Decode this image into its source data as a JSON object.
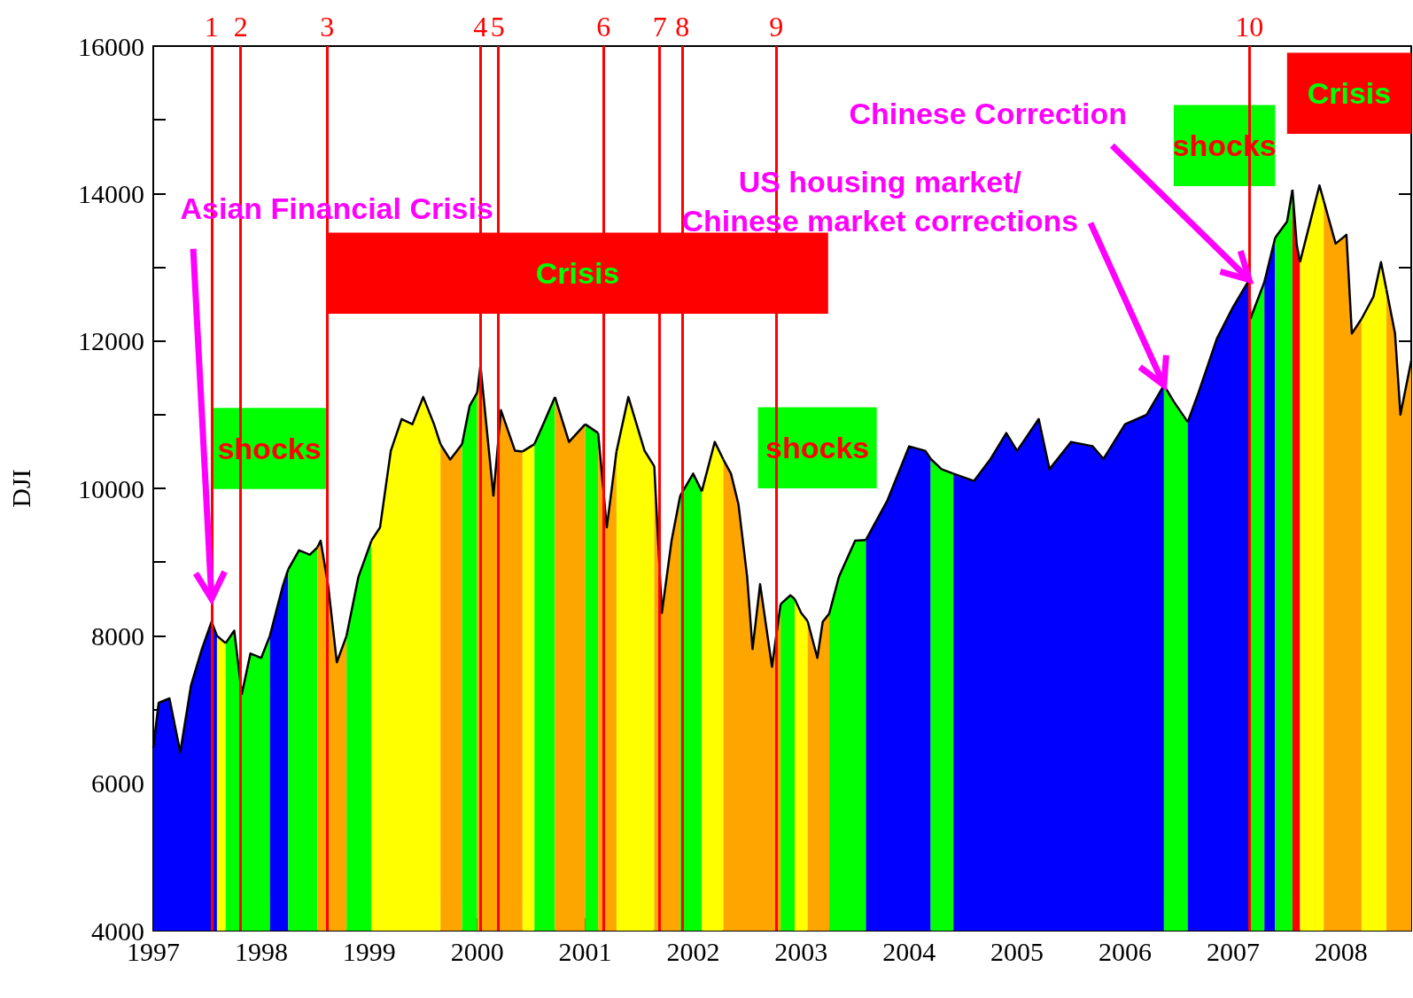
{
  "chart_data": {
    "type": "area",
    "ylabel": "DJI",
    "xlim": [
      1997,
      2008.65
    ],
    "xticks": [
      1997,
      1998,
      1999,
      2000,
      2001,
      2002,
      2003,
      2004,
      2005,
      2006,
      2007,
      2008
    ],
    "ylim": [
      4000,
      16000
    ],
    "yticks": [
      4000,
      {
        "value": 5000,
        "label": null
      },
      6000,
      {
        "value": 7000,
        "label": null
      },
      8000,
      {
        "value": 9000,
        "label": null
      },
      10000,
      {
        "value": 11000,
        "label": null
      },
      12000,
      {
        "value": 13000,
        "label": null
      },
      14000,
      {
        "value": 15000,
        "label": null
      },
      16000
    ],
    "series": [
      {
        "color": "#0000ff",
        "x": [
          1997.0,
          1997.05,
          1997.15,
          1997.25,
          1997.35,
          1997.45,
          1997.54,
          1997.59
        ],
        "values": [
          6480,
          7090,
          7150,
          6420,
          7330,
          7820,
          8190,
          8000
        ]
      },
      {
        "color": "#ffff00",
        "x": [
          1997.59,
          1997.67
        ],
        "values": [
          8000,
          7900
        ]
      },
      {
        "color": "#00ff00",
        "x": [
          1997.67,
          1997.75,
          1997.82,
          1997.9,
          1998.0,
          1998.08
        ],
        "values": [
          7900,
          8070,
          7210,
          7760,
          7700,
          8000
        ]
      },
      {
        "color": "#0000ff",
        "x": [
          1998.08,
          1998.2,
          1998.25
        ],
        "values": [
          8000,
          8680,
          8900
        ]
      },
      {
        "color": "#00ff00",
        "x": [
          1998.25,
          1998.35,
          1998.45,
          1998.52
        ],
        "values": [
          8900,
          9160,
          9100,
          9200
        ]
      },
      {
        "color": "#ffa500",
        "x": [
          1998.52,
          1998.55,
          1998.62,
          1998.7,
          1998.79
        ],
        "values": [
          9200,
          9290,
          8680,
          7640,
          8000
        ]
      },
      {
        "color": "#00ff00",
        "x": [
          1998.79,
          1998.9,
          1999.02
        ],
        "values": [
          8000,
          8800,
          9290
        ]
      },
      {
        "color": "#ffff00",
        "x": [
          1999.02,
          1999.1,
          1999.2,
          1999.3,
          1999.4,
          1999.5,
          1999.6,
          1999.66
        ],
        "values": [
          9290,
          9470,
          10510,
          10940,
          10870,
          11240,
          10870,
          10600
        ]
      },
      {
        "color": "#ffa500",
        "x": [
          1999.66,
          1999.75,
          1999.86
        ],
        "values": [
          10600,
          10390,
          10600
        ]
      },
      {
        "color": "#00ff00",
        "x": [
          1999.86,
          1999.93,
          2000.0
        ],
        "values": [
          10600,
          11120,
          11300
        ]
      },
      {
        "color": "#ffa500",
        "x": [
          2000.0,
          2000.03,
          2000.15,
          2000.22,
          2000.35,
          2000.42
        ],
        "values": [
          11300,
          11670,
          9900,
          11060,
          10510,
          10500
        ]
      },
      {
        "color": "#ffff00",
        "x": [
          2000.42,
          2000.53
        ],
        "values": [
          10500,
          10600
        ]
      },
      {
        "color": "#00ff00",
        "x": [
          2000.53,
          2000.62,
          2000.72
        ],
        "values": [
          10600,
          10900,
          11240
        ]
      },
      {
        "color": "#ffa500",
        "x": [
          2000.72,
          2000.85,
          2001.0
        ],
        "values": [
          11240,
          10630,
          10870
        ]
      },
      {
        "color": "#00ff00",
        "x": [
          2001.0,
          2001.12
        ],
        "values": [
          10870,
          10750
        ]
      },
      {
        "color": "#ffa500",
        "x": [
          2001.12,
          2001.2,
          2001.29
        ],
        "values": [
          10750,
          9470,
          10500
        ]
      },
      {
        "color": "#ffff00",
        "x": [
          2001.29,
          2001.4,
          2001.55,
          2001.64
        ],
        "values": [
          10500,
          11240,
          10510,
          10300
        ]
      },
      {
        "color": "#ffa500",
        "x": [
          2001.64,
          2001.71,
          2001.8,
          2001.88
        ],
        "values": [
          10300,
          8310,
          9290,
          9900
        ]
      },
      {
        "color": "#00ff00",
        "x": [
          2001.88,
          2002.0,
          2002.08
        ],
        "values": [
          9900,
          10200,
          9960
        ]
      },
      {
        "color": "#ffff00",
        "x": [
          2002.08,
          2002.2,
          2002.28
        ],
        "values": [
          9960,
          10630,
          10390
        ]
      },
      {
        "color": "#ffa500",
        "x": [
          2002.28,
          2002.35,
          2002.42,
          2002.5,
          2002.55,
          2002.62,
          2002.73,
          2002.81
        ],
        "values": [
          10390,
          10200,
          9780,
          8800,
          7820,
          8700,
          7580,
          8430
        ]
      },
      {
        "color": "#00ff00",
        "x": [
          2002.81,
          2002.9,
          2002.94
        ],
        "values": [
          8430,
          8550,
          8500
        ]
      },
      {
        "color": "#ffff00",
        "x": [
          2002.94,
          2003.0,
          2003.06
        ],
        "values": [
          8500,
          8310,
          8200
        ]
      },
      {
        "color": "#ffa500",
        "x": [
          2003.06,
          2003.15,
          2003.2,
          2003.26
        ],
        "values": [
          8200,
          7700,
          8190,
          8300
        ]
      },
      {
        "color": "#00ff00",
        "x": [
          2003.26,
          2003.35,
          2003.5,
          2003.6
        ],
        "values": [
          8300,
          8800,
          9290,
          9300
        ]
      },
      {
        "color": "#0000ff",
        "x": [
          2003.6,
          2003.8,
          2004.0,
          2004.15,
          2004.2
        ],
        "values": [
          9300,
          9840,
          10570,
          10510,
          10400
        ]
      },
      {
        "color": "#00ff00",
        "x": [
          2004.2,
          2004.3,
          2004.41
        ],
        "values": [
          10400,
          10260,
          10200
        ]
      },
      {
        "color": "#0000ff",
        "x": [
          2004.41,
          2004.6,
          2004.75,
          2004.9,
          2005.0,
          2005.2,
          2005.3,
          2005.5,
          2005.7,
          2005.8,
          2006.0,
          2006.2,
          2006.36
        ],
        "values": [
          10200,
          10100,
          10390,
          10750,
          10510,
          10940,
          10260,
          10630,
          10570,
          10400,
          10870,
          11000,
          11400
        ]
      },
      {
        "color": "#00ff00",
        "x": [
          2006.36,
          2006.45,
          2006.58
        ],
        "values": [
          11400,
          11180,
          10900
        ]
      },
      {
        "color": "#0000ff",
        "x": [
          2006.58,
          2006.68,
          2006.85,
          2007.0,
          2007.15,
          2007.16
        ],
        "values": [
          10900,
          11300,
          12030,
          12460,
          12830,
          12300
        ]
      },
      {
        "color": "#00ff00",
        "x": [
          2007.16,
          2007.29
        ],
        "values": [
          12300,
          12800
        ]
      },
      {
        "color": "#0000ff",
        "x": [
          2007.29,
          2007.39
        ],
        "values": [
          12800,
          13400
        ]
      },
      {
        "color": "#00ff00",
        "x": [
          2007.39,
          2007.5,
          2007.55
        ],
        "values": [
          13400,
          13620,
          14050
        ]
      },
      {
        "color": "#ff0000",
        "x": [
          2007.55,
          2007.59,
          2007.62
        ],
        "values": [
          14050,
          13300,
          13070
        ]
      },
      {
        "color": "#ffff00",
        "x": [
          2007.62,
          2007.8,
          2007.84
        ],
        "values": [
          13070,
          14110,
          13900
        ]
      },
      {
        "color": "#ffa500",
        "x": [
          2007.84,
          2007.95,
          2008.05,
          2008.1,
          2008.19
        ],
        "values": [
          13900,
          13320,
          13440,
          12100,
          12300
        ]
      },
      {
        "color": "#ffff00",
        "x": [
          2008.19,
          2008.3,
          2008.37,
          2008.42
        ],
        "values": [
          12300,
          12600,
          13070,
          12700
        ]
      },
      {
        "color": "#ffa500",
        "x": [
          2008.42,
          2008.5,
          2008.55,
          2008.65
        ],
        "values": [
          12700,
          12100,
          11000,
          11730
        ]
      }
    ],
    "ref_lines": [
      {
        "axis": "x",
        "value": 1997.54,
        "color": "#ff0000"
      },
      {
        "axis": "x",
        "value": 1997.81,
        "color": "#ff0000"
      },
      {
        "axis": "x",
        "value": 1998.61,
        "color": "#ff0000"
      },
      {
        "axis": "x",
        "value": 2000.03,
        "color": "#ff0000"
      },
      {
        "axis": "x",
        "value": 2000.19,
        "color": "#ff0000"
      },
      {
        "axis": "x",
        "value": 2001.17,
        "color": "#ff0000"
      },
      {
        "axis": "x",
        "value": 2001.69,
        "color": "#ff0000"
      },
      {
        "axis": "x",
        "value": 2001.9,
        "color": "#ff0000"
      },
      {
        "axis": "x",
        "value": 2002.77,
        "color": "#ff0000"
      },
      {
        "axis": "x",
        "value": 2007.15,
        "color": "#ff0000"
      }
    ],
    "bands": [
      {
        "axis": "x",
        "from": 1997.55,
        "to": 1998.6,
        "label": "shocks",
        "color": "#00ff00"
      },
      {
        "axis": "x",
        "from": 1998.61,
        "to": 2003.25,
        "label": "Crisis",
        "color": "#ff0000"
      },
      {
        "axis": "x",
        "from": 2002.6,
        "to": 2003.7,
        "label": "shocks",
        "color": "#00ff00"
      },
      {
        "axis": "x",
        "from": 2006.45,
        "to": 2007.39,
        "label": "shocks",
        "color": "#00ff00"
      },
      {
        "axis": "x",
        "from": 2007.5,
        "to": 2008.65,
        "label": "Crisis",
        "color": "#ff0000"
      }
    ],
    "annotations": [
      "1",
      "2",
      "3",
      "4",
      "5",
      "6",
      "7",
      "8",
      "9",
      "10",
      {
        "text": "Asian Financial Crisis",
        "x": 1997.54,
        "y": 8500
      },
      {
        "text": "Chinese Correction",
        "x": 2007.15,
        "y": 12830
      },
      {
        "text": "US housing market/\nChinese market corrections",
        "x": 2006.36,
        "y": 11400
      }
    ]
  }
}
